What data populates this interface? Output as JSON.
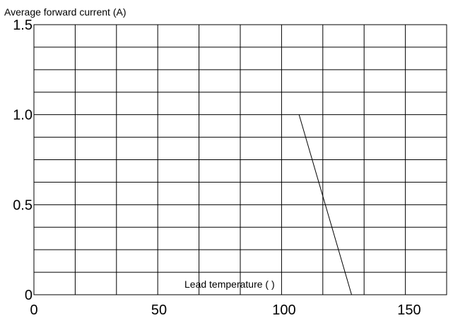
{
  "chart_data": {
    "type": "line",
    "title": "",
    "ylabel": "Average forward current (A)",
    "xlabel": "Lead temperature (   )",
    "xlim": [
      0,
      165
    ],
    "ylim": [
      0,
      1.5
    ],
    "x_ticks": [
      0,
      50,
      100,
      150
    ],
    "x_tick_labels": [
      "0",
      "50",
      "100",
      "150"
    ],
    "y_ticks": [
      0,
      0.5,
      1.0,
      1.5
    ],
    "y_tick_labels": [
      "0",
      "0.5",
      "1.0",
      "1.5"
    ],
    "grid": true,
    "series": [
      {
        "x": [
          106,
          127
        ],
        "y": [
          1.0,
          0.0
        ]
      }
    ]
  }
}
